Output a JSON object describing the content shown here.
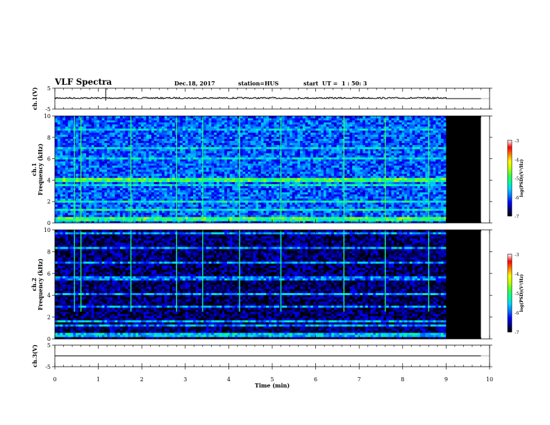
{
  "header": {
    "title": "VLF Spectra",
    "date": "Dec.18, 2017",
    "station": "station=HUS",
    "start": "start  UT =  1 : 50: 3"
  },
  "colors": {
    "background": "#ffffff",
    "no_data": "#000000",
    "colormap": [
      "#000000",
      "#00007a",
      "#0000ff",
      "#0078ff",
      "#00d2ff",
      "#00ff9a",
      "#40ff40",
      "#c0ff00",
      "#ffff00",
      "#ff8000",
      "#ff0000",
      "#ffffff"
    ]
  },
  "chart_data": [
    {
      "type": "line",
      "panel": "ch1-waveform",
      "ylabel": "ch.1(V)",
      "ylim": [
        -5,
        5
      ],
      "yticks": [
        "5",
        "-5"
      ],
      "xlim": [
        0,
        10
      ],
      "series": [
        {
          "x": [
            0,
            9,
            9,
            9.8
          ],
          "y": [
            0.3,
            0.3,
            0.0,
            0.0
          ]
        }
      ]
    },
    {
      "type": "heatmap",
      "panel": "ch1-spectrogram",
      "ylabel": "ch.1\nFrequency (kHz)",
      "ylim": [
        0,
        10
      ],
      "yticks": [
        "0",
        "2",
        "4",
        "6",
        "8",
        "10"
      ],
      "xlim": [
        0,
        10
      ],
      "data_end_min": 9.0,
      "no_data_end_min": 9.8,
      "colorbar": {
        "label": "log(PSD)(V²/Hz)",
        "range": [
          -7,
          -3
        ],
        "ticks": [
          "-3",
          "-4",
          "-5",
          "-6",
          "-7"
        ]
      },
      "base_level": -6.0,
      "bands": [
        {
          "freq_khz": 4.2,
          "level": -4.9
        },
        {
          "freq_khz": 4.0,
          "level": -5.0
        },
        {
          "freq_khz": 0.5,
          "level": -4.9
        },
        {
          "freq_khz": 0.3,
          "level": -5.1
        },
        {
          "freq_khz": 1.3,
          "level": -5.3
        },
        {
          "freq_khz": 2.0,
          "level": -5.3
        },
        {
          "freq_khz": 3.5,
          "level": -5.4
        },
        {
          "freq_khz": 6.0,
          "level": -5.5
        },
        {
          "freq_khz": 7.0,
          "level": -5.5
        },
        {
          "freq_khz": 8.7,
          "level": -5.6
        }
      ],
      "bursts": [
        {
          "t_min": 0.45,
          "fmin_khz": 0.5,
          "fmax_khz": 10,
          "level": -5.0
        },
        {
          "t_min": 0.6,
          "fmin_khz": 0.5,
          "fmax_khz": 10,
          "level": -4.9
        },
        {
          "t_min": 1.75,
          "fmin_khz": 0.5,
          "fmax_khz": 10,
          "level": -5.0
        },
        {
          "t_min": 2.8,
          "fmin_khz": 0.5,
          "fmax_khz": 10,
          "level": -5.0
        },
        {
          "t_min": 3.4,
          "fmin_khz": 0.5,
          "fmax_khz": 10,
          "level": -5.1
        },
        {
          "t_min": 4.25,
          "fmin_khz": 0.5,
          "fmax_khz": 10,
          "level": -5.0
        },
        {
          "t_min": 5.2,
          "fmin_khz": 0.5,
          "fmax_khz": 10,
          "level": -5.1
        },
        {
          "t_min": 6.65,
          "fmin_khz": 0.5,
          "fmax_khz": 10,
          "level": -4.9
        },
        {
          "t_min": 7.6,
          "fmin_khz": 0.5,
          "fmax_khz": 10,
          "level": -4.9
        },
        {
          "t_min": 8.6,
          "fmin_khz": 0.5,
          "fmax_khz": 10,
          "level": -5.0
        }
      ]
    },
    {
      "type": "heatmap",
      "panel": "ch2-spectrogram",
      "ylabel": "ch.2\nFrequency (kHz)",
      "ylim": [
        0,
        10
      ],
      "yticks": [
        "0",
        "2",
        "4",
        "6",
        "8",
        "10"
      ],
      "xlim": [
        0,
        10
      ],
      "data_end_min": 9.0,
      "no_data_end_min": 9.8,
      "colorbar": {
        "label": "log(PSD)(V²/Hz)",
        "range": [
          -7,
          -3
        ],
        "ticks": [
          "-3",
          "-4",
          "-5",
          "-6",
          "-7"
        ]
      },
      "base_level": -6.7,
      "bands": [
        {
          "freq_khz": 9.7,
          "level": -5.8
        },
        {
          "freq_khz": 8.3,
          "level": -5.8
        },
        {
          "freq_khz": 7.0,
          "level": -5.8
        },
        {
          "freq_khz": 5.6,
          "level": -5.9
        },
        {
          "freq_khz": 4.2,
          "level": -5.8
        },
        {
          "freq_khz": 3.0,
          "level": -5.9
        },
        {
          "freq_khz": 1.7,
          "level": -5.7
        },
        {
          "freq_khz": 1.2,
          "level": -5.8
        },
        {
          "freq_khz": 0.4,
          "level": -5.6
        }
      ],
      "bursts": [
        {
          "t_min": 0.45,
          "fmin_khz": 2.5,
          "fmax_khz": 10,
          "level": -5.2
        },
        {
          "t_min": 0.6,
          "fmin_khz": 2.5,
          "fmax_khz": 10,
          "level": -5.0
        },
        {
          "t_min": 1.75,
          "fmin_khz": 2.5,
          "fmax_khz": 10,
          "level": -5.1
        },
        {
          "t_min": 2.8,
          "fmin_khz": 2.5,
          "fmax_khz": 10,
          "level": -5.1
        },
        {
          "t_min": 3.4,
          "fmin_khz": 2.5,
          "fmax_khz": 10,
          "level": -5.2
        },
        {
          "t_min": 4.25,
          "fmin_khz": 2.5,
          "fmax_khz": 10,
          "level": -5.1
        },
        {
          "t_min": 5.2,
          "fmin_khz": 2.5,
          "fmax_khz": 10,
          "level": -5.2
        },
        {
          "t_min": 6.65,
          "fmin_khz": 2.5,
          "fmax_khz": 10,
          "level": -5.0
        },
        {
          "t_min": 7.6,
          "fmin_khz": 2.5,
          "fmax_khz": 10,
          "level": -5.0
        },
        {
          "t_min": 8.6,
          "fmin_khz": 2.5,
          "fmax_khz": 10,
          "level": -5.1
        }
      ]
    },
    {
      "type": "line",
      "panel": "ch3-waveform",
      "ylabel": "ch.3(V)",
      "ylim": [
        -5,
        5
      ],
      "yticks": [
        "5",
        "-5"
      ],
      "xlim": [
        0,
        10
      ],
      "series": [
        {
          "x": [
            0,
            9.8
          ],
          "y": [
            0.0,
            0.0
          ]
        }
      ]
    }
  ],
  "x_axis": {
    "label": "Time (min)",
    "ticks": [
      "0",
      "1",
      "2",
      "3",
      "4",
      "5",
      "6",
      "7",
      "8",
      "9",
      "10"
    ]
  }
}
